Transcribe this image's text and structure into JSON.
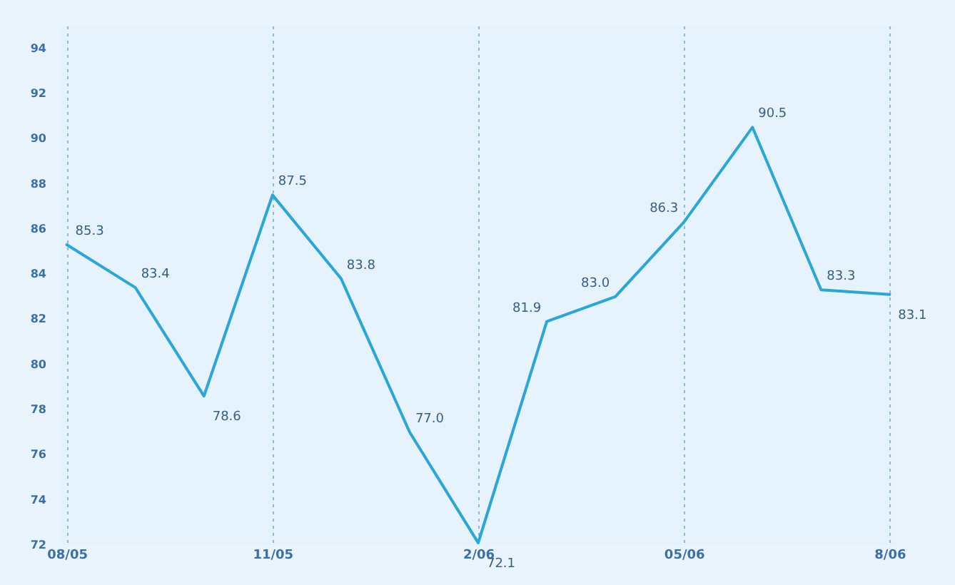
{
  "chart_data": {
    "type": "line",
    "categories": [
      "08/05",
      null,
      null,
      "11/05",
      null,
      null,
      "2/06",
      null,
      null,
      "05/06",
      null,
      null,
      "8/06"
    ],
    "series": [
      {
        "color": "#2aa6d9",
        "values": [
          85.3,
          83.4,
          78.6,
          87.5,
          83.8,
          77.0,
          72.1,
          81.9,
          83.0,
          86.3,
          90.5,
          83.3,
          83.1
        ],
        "value_labels": [
          "85.3",
          "83.4",
          "78.6",
          "87.5",
          "83.8",
          "77.0",
          "72.1",
          "81.9",
          "83.0",
          "86.3",
          "90.5",
          "83.3",
          "83.1"
        ]
      }
    ],
    "ylim": [
      72,
      95
    ],
    "yticks": [
      72,
      74,
      76,
      78,
      80,
      82,
      84,
      86,
      88,
      90,
      92,
      94
    ],
    "grid": "x",
    "marker": "none",
    "line_style": "solid"
  }
}
